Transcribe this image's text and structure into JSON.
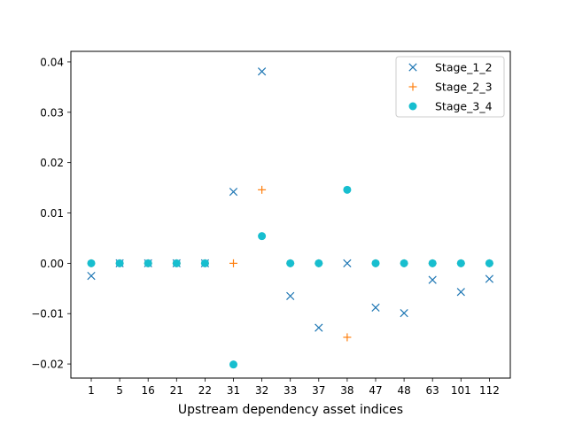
{
  "chart_data": {
    "type": "scatter",
    "xlabel": "Upstream dependency asset indices",
    "ylabel": "",
    "title": "",
    "categories": [
      "1",
      "5",
      "16",
      "21",
      "22",
      "31",
      "32",
      "33",
      "37",
      "38",
      "47",
      "48",
      "63",
      "101",
      "112"
    ],
    "ylim": [
      -0.0228,
      0.0421
    ],
    "yticks": [
      -0.02,
      -0.01,
      0.0,
      0.01,
      0.02,
      0.03,
      0.04
    ],
    "ytick_labels": [
      "−0.02",
      "−0.01",
      "0.00",
      "0.01",
      "0.02",
      "0.03",
      "0.04"
    ],
    "grid": false,
    "legend_position": "top-right",
    "series": [
      {
        "name": "Stage_1_2",
        "marker": "x",
        "color": "#1f77b4",
        "values": [
          -0.0025,
          0.0,
          0.0,
          0.0,
          0.0,
          0.0142,
          0.0381,
          -0.0065,
          -0.0128,
          0.0,
          -0.0088,
          -0.0099,
          -0.0033,
          -0.0057,
          -0.0031
        ]
      },
      {
        "name": "Stage_2_3",
        "marker": "plus",
        "color": "#ff7f0e",
        "values": [
          0.0,
          0.0,
          0.0,
          0.0,
          0.0,
          0.0,
          0.0146,
          0.0,
          0.0,
          -0.0147,
          0.0,
          0.0,
          0.0,
          0.0,
          0.0
        ]
      },
      {
        "name": "Stage_3_4",
        "marker": "circle",
        "color": "#17becf",
        "values": [
          0.0,
          0.0,
          0.0,
          0.0,
          0.0,
          -0.0201,
          0.0054,
          0.0,
          0.0,
          0.0146,
          0.0,
          0.0,
          0.0,
          0.0,
          0.0
        ]
      }
    ]
  }
}
